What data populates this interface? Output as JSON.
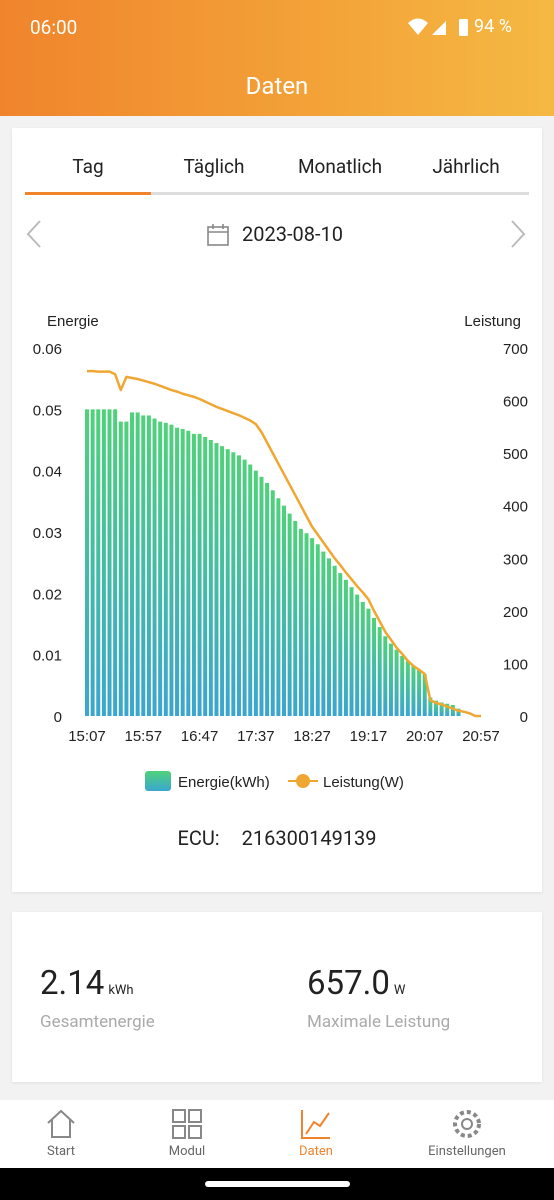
{
  "status_bar": {
    "time": "06:00",
    "battery": "94 %"
  },
  "header": {
    "title": "Daten"
  },
  "tabs": [
    "Tag",
    "Täglich",
    "Monatlich",
    "Jährlich"
  ],
  "date": "2023-08-10",
  "chart_data": {
    "type": "combo",
    "y_label": "Energie",
    "y2_label": "Leistung",
    "categories": [
      "15:07",
      null,
      null,
      null,
      null,
      null,
      null,
      null,
      null,
      null,
      "15:57",
      null,
      null,
      null,
      null,
      null,
      null,
      null,
      null,
      null,
      "16:47",
      null,
      null,
      null,
      null,
      null,
      null,
      null,
      null,
      null,
      "17:37",
      null,
      null,
      null,
      null,
      null,
      null,
      null,
      null,
      null,
      "18:27",
      null,
      null,
      null,
      null,
      null,
      null,
      null,
      null,
      null,
      "19:17",
      null,
      null,
      null,
      null,
      null,
      null,
      null,
      null,
      null,
      "20:07",
      null,
      null,
      null,
      null,
      null,
      null,
      null,
      null,
      null,
      "20:57"
    ],
    "series": [
      {
        "name": "Energie(kWh)",
        "type": "bar",
        "color": "#4fd27a",
        "color_bottom": "#3aa6cf",
        "values": [
          0.05,
          0.05,
          0.05,
          0.05,
          0.05,
          0.05,
          0.048,
          0.048,
          0.0495,
          0.0495,
          0.049,
          0.049,
          0.0485,
          0.048,
          0.0478,
          0.0475,
          0.047,
          0.0468,
          0.0465,
          0.046,
          0.046,
          0.0455,
          0.045,
          0.0445,
          0.044,
          0.0435,
          0.043,
          0.0425,
          0.0418,
          0.041,
          0.04,
          0.039,
          0.038,
          0.0368,
          0.0355,
          0.0343,
          0.033,
          0.0318,
          0.0305,
          0.0298,
          0.029,
          0.028,
          0.0268,
          0.0257,
          0.0245,
          0.0233,
          0.0222,
          0.021,
          0.0198,
          0.0186,
          0.0175,
          0.016,
          0.0145,
          0.013,
          0.0118,
          0.0108,
          0.0098,
          0.009,
          0.0082,
          0.0075,
          0.0068,
          0.003,
          0.0025,
          0.0022,
          0.002,
          0.0018,
          0.0012,
          null,
          null,
          null,
          null
        ]
      },
      {
        "name": "Leistung(W)",
        "type": "line",
        "axis": "y2",
        "color": "#f0a732",
        "values": [
          656,
          656,
          655,
          655,
          655,
          650,
          620,
          645,
          643,
          641,
          638,
          635,
          632,
          628,
          624,
          620,
          617,
          613,
          610,
          607,
          603,
          598,
          593,
          588,
          584,
          580,
          576,
          572,
          567,
          562,
          555,
          540,
          520,
          500,
          480,
          460,
          440,
          420,
          400,
          380,
          360,
          345,
          330,
          315,
          300,
          287,
          273,
          260,
          247,
          235,
          222,
          200,
          180,
          160,
          145,
          130,
          118,
          105,
          95,
          88,
          80,
          30,
          25,
          22,
          18,
          14,
          10,
          8,
          5,
          0,
          0
        ]
      }
    ],
    "ylim": [
      0,
      0.06
    ],
    "yticks": [
      0,
      0.01,
      0.02,
      0.03,
      0.04,
      0.05,
      0.06
    ],
    "y2lim": [
      0,
      700
    ],
    "y2ticks": [
      0,
      100,
      200,
      300,
      400,
      500,
      600,
      700
    ]
  },
  "ecu": {
    "label": "ECU:",
    "value": "216300149139"
  },
  "summary": [
    {
      "value": "2.14",
      "unit": "kWh",
      "label": "Gesamtenergie"
    },
    {
      "value": "657.0",
      "unit": "W",
      "label": "Maximale Leistung"
    }
  ],
  "nav": [
    "Start",
    "Modul",
    "Daten",
    "Einstellungen"
  ]
}
